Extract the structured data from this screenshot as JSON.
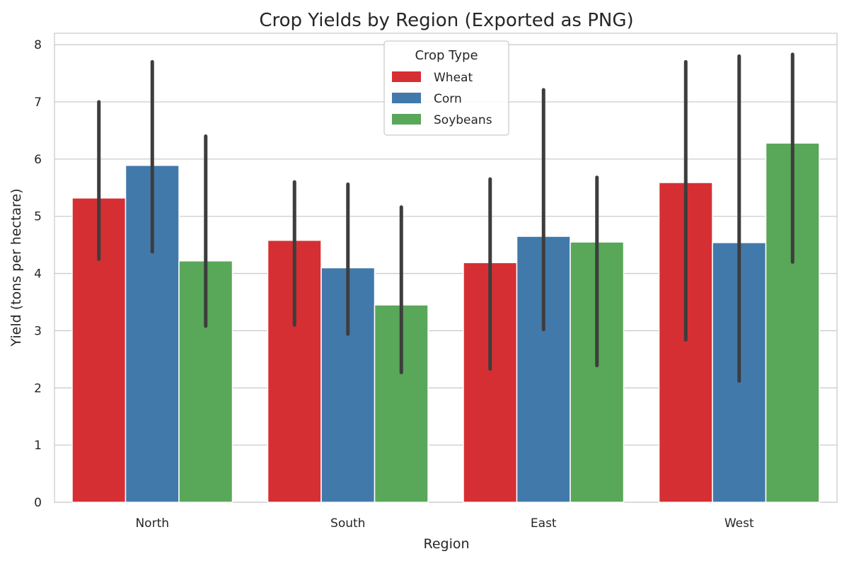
{
  "chart_data": {
    "type": "bar",
    "title": "Crop Yields by Region (Exported as PNG)",
    "xlabel": "Region",
    "ylabel": "Yield (tons per hectare)",
    "categories": [
      "North",
      "South",
      "East",
      "West"
    ],
    "ylim": [
      0,
      8.2
    ],
    "yticks": [
      "0",
      "1",
      "2",
      "3",
      "4",
      "5",
      "6",
      "7",
      "8"
    ],
    "grid": true,
    "legend": {
      "title": "Crop Type",
      "placement": "upper-center"
    },
    "series": [
      {
        "name": "Wheat",
        "color": "#d62f33",
        "values": [
          5.32,
          4.58,
          4.19,
          5.59
        ],
        "error_low": [
          4.25,
          3.1,
          2.33,
          2.84
        ],
        "error_high": [
          7.0,
          5.6,
          5.65,
          7.7
        ]
      },
      {
        "name": "Corn",
        "color": "#4279ab",
        "values": [
          5.89,
          4.1,
          4.65,
          4.54
        ],
        "error_low": [
          4.38,
          2.94,
          3.02,
          2.12
        ],
        "error_high": [
          7.7,
          5.56,
          7.21,
          7.8
        ]
      },
      {
        "name": "Soybeans",
        "color": "#59a758",
        "values": [
          4.22,
          3.45,
          4.55,
          6.28
        ],
        "error_low": [
          3.08,
          2.27,
          2.39,
          4.2
        ],
        "error_high": [
          6.4,
          5.16,
          5.68,
          7.83
        ]
      }
    ]
  }
}
